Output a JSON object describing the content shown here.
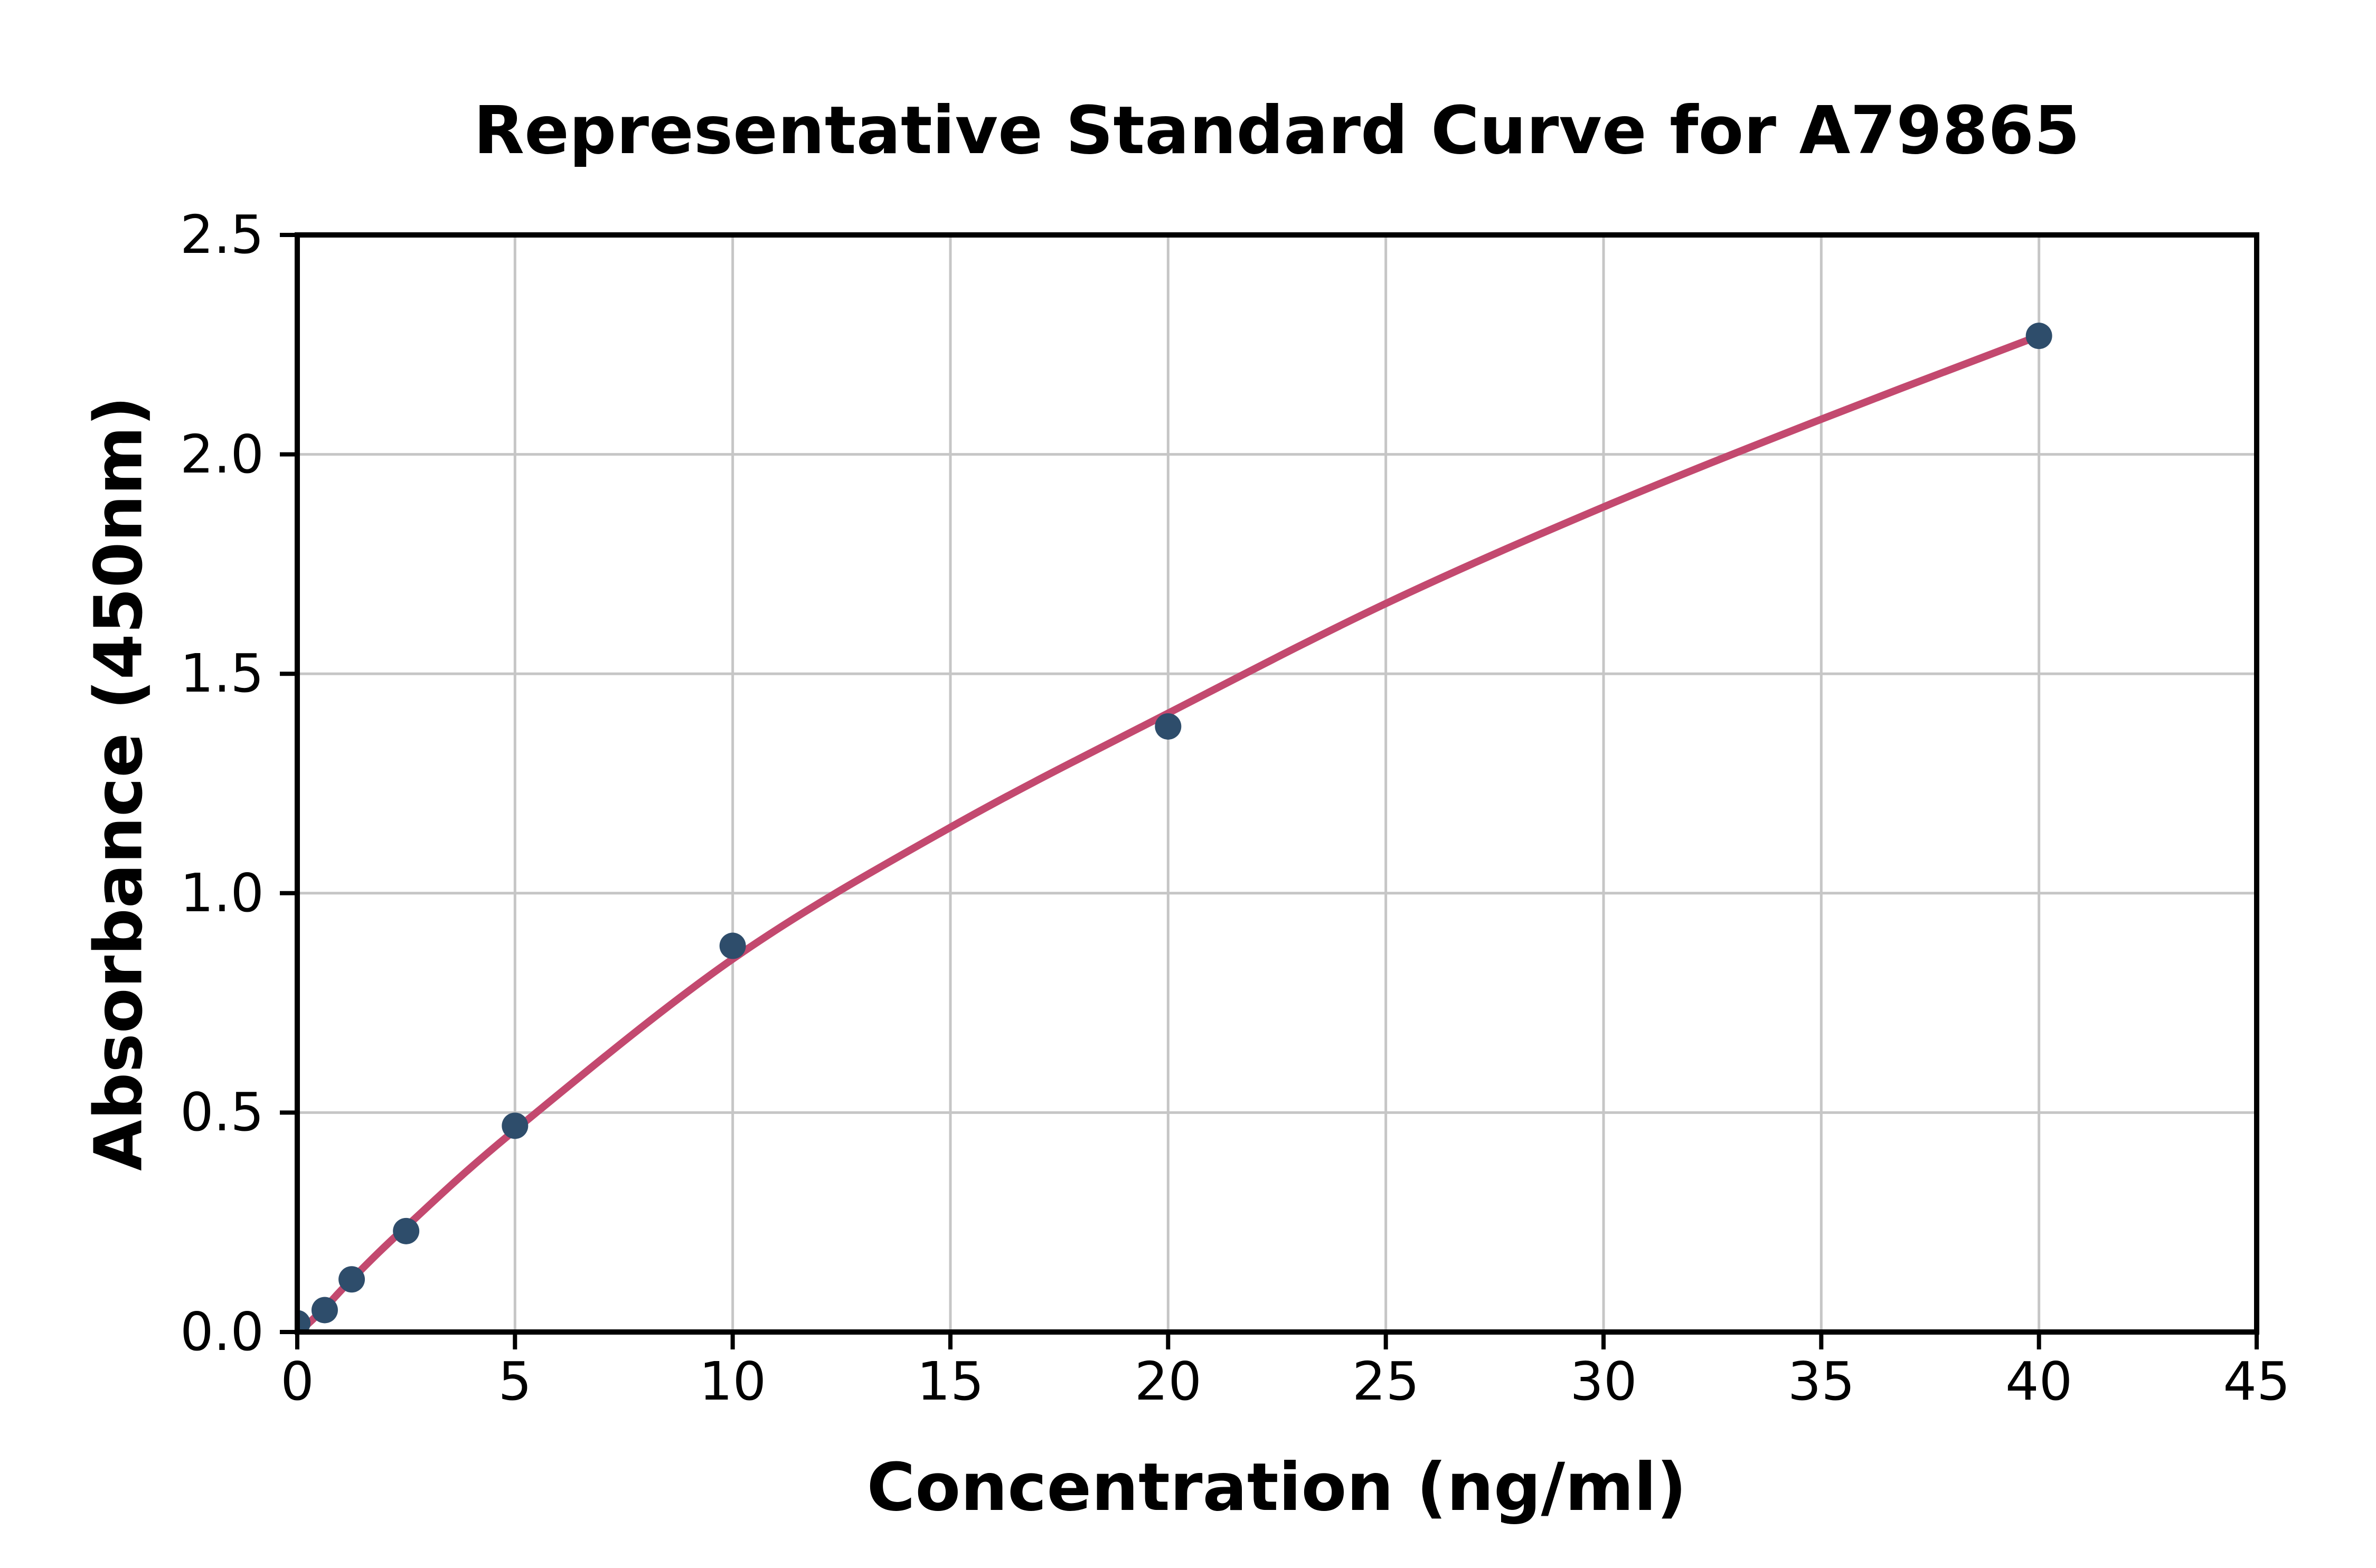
{
  "chart": {
    "title": "Representative Standard Curve for A79865",
    "x_axis": {
      "label": "Concentration (ng/ml)",
      "min": 0,
      "max": 45,
      "tick_values": [
        0,
        5,
        10,
        15,
        20,
        25,
        30,
        35,
        40,
        45
      ],
      "tick_labels": [
        "0",
        "5",
        "10",
        "15",
        "20",
        "25",
        "30",
        "35",
        "40",
        "45"
      ]
    },
    "y_axis": {
      "label": "Absorbance (450nm)",
      "min": 0,
      "max": 2.5,
      "tick_values": [
        0,
        0.5,
        1.0,
        1.5,
        2.0,
        2.5
      ],
      "tick_labels": [
        "0.0",
        "0.5",
        "1.0",
        "1.5",
        "2.0",
        "2.5"
      ]
    },
    "colors": {
      "curve": "#c3496f",
      "marker": "#2e4d6b",
      "grid": "#c6c6c6",
      "axis": "#000000",
      "background": "#ffffff",
      "text": "#000000"
    }
  },
  "chart_data": {
    "type": "scatter",
    "title": "Representative Standard Curve for A79865",
    "xlabel": "Concentration (ng/ml)",
    "ylabel": "Absorbance (450nm)",
    "xlim": [
      0,
      45
    ],
    "ylim": [
      0,
      2.5
    ],
    "grid": true,
    "legend": false,
    "series": [
      {
        "name": "standards",
        "style": "filled-circle-markers",
        "points": [
          {
            "x": 0,
            "y": 0.02
          },
          {
            "x": 0.63,
            "y": 0.05
          },
          {
            "x": 1.25,
            "y": 0.12
          },
          {
            "x": 2.5,
            "y": 0.23
          },
          {
            "x": 5,
            "y": 0.47
          },
          {
            "x": 10,
            "y": 0.88
          },
          {
            "x": 20,
            "y": 1.38
          },
          {
            "x": 40,
            "y": 2.27
          }
        ]
      },
      {
        "name": "fitted-curve",
        "style": "smooth-line",
        "points": [
          {
            "x": 0.1,
            "y": 0.005
          },
          {
            "x": 0.63,
            "y": 0.055
          },
          {
            "x": 1.25,
            "y": 0.12
          },
          {
            "x": 2.5,
            "y": 0.24
          },
          {
            "x": 5,
            "y": 0.46
          },
          {
            "x": 10,
            "y": 0.85
          },
          {
            "x": 15,
            "y": 1.15
          },
          {
            "x": 20,
            "y": 1.41
          },
          {
            "x": 25,
            "y": 1.66
          },
          {
            "x": 30,
            "y": 1.88
          },
          {
            "x": 35,
            "y": 2.08
          },
          {
            "x": 40,
            "y": 2.27
          }
        ]
      }
    ]
  }
}
